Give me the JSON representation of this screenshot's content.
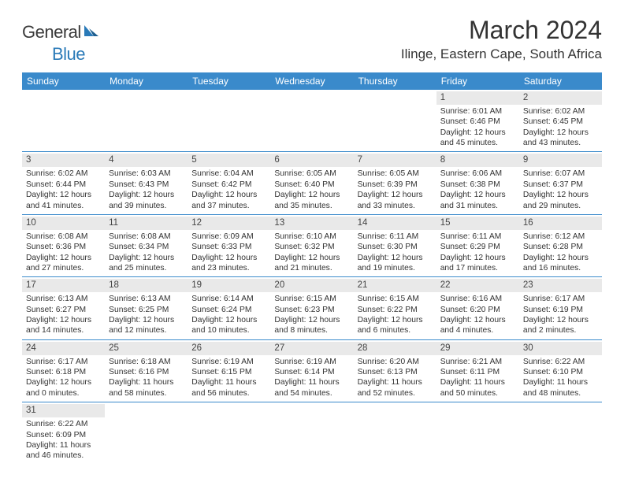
{
  "logo": {
    "general": "General",
    "blue": "Blue"
  },
  "title": "March 2024",
  "location": "Ilinge, Eastern Cape, South Africa",
  "colors": {
    "header_bg": "#3a8acb",
    "header_text": "#ffffff",
    "daynum_bg": "#e9e9e9",
    "row_border": "#3a8acb",
    "body_text": "#333333",
    "logo_blue": "#2a7ab8"
  },
  "dow": [
    "Sunday",
    "Monday",
    "Tuesday",
    "Wednesday",
    "Thursday",
    "Friday",
    "Saturday"
  ],
  "weeks": [
    [
      {
        "n": "",
        "sr": "",
        "ss": "",
        "dl": ""
      },
      {
        "n": "",
        "sr": "",
        "ss": "",
        "dl": ""
      },
      {
        "n": "",
        "sr": "",
        "ss": "",
        "dl": ""
      },
      {
        "n": "",
        "sr": "",
        "ss": "",
        "dl": ""
      },
      {
        "n": "",
        "sr": "",
        "ss": "",
        "dl": ""
      },
      {
        "n": "1",
        "sr": "Sunrise: 6:01 AM",
        "ss": "Sunset: 6:46 PM",
        "dl": "Daylight: 12 hours and 45 minutes."
      },
      {
        "n": "2",
        "sr": "Sunrise: 6:02 AM",
        "ss": "Sunset: 6:45 PM",
        "dl": "Daylight: 12 hours and 43 minutes."
      }
    ],
    [
      {
        "n": "3",
        "sr": "Sunrise: 6:02 AM",
        "ss": "Sunset: 6:44 PM",
        "dl": "Daylight: 12 hours and 41 minutes."
      },
      {
        "n": "4",
        "sr": "Sunrise: 6:03 AM",
        "ss": "Sunset: 6:43 PM",
        "dl": "Daylight: 12 hours and 39 minutes."
      },
      {
        "n": "5",
        "sr": "Sunrise: 6:04 AM",
        "ss": "Sunset: 6:42 PM",
        "dl": "Daylight: 12 hours and 37 minutes."
      },
      {
        "n": "6",
        "sr": "Sunrise: 6:05 AM",
        "ss": "Sunset: 6:40 PM",
        "dl": "Daylight: 12 hours and 35 minutes."
      },
      {
        "n": "7",
        "sr": "Sunrise: 6:05 AM",
        "ss": "Sunset: 6:39 PM",
        "dl": "Daylight: 12 hours and 33 minutes."
      },
      {
        "n": "8",
        "sr": "Sunrise: 6:06 AM",
        "ss": "Sunset: 6:38 PM",
        "dl": "Daylight: 12 hours and 31 minutes."
      },
      {
        "n": "9",
        "sr": "Sunrise: 6:07 AM",
        "ss": "Sunset: 6:37 PM",
        "dl": "Daylight: 12 hours and 29 minutes."
      }
    ],
    [
      {
        "n": "10",
        "sr": "Sunrise: 6:08 AM",
        "ss": "Sunset: 6:36 PM",
        "dl": "Daylight: 12 hours and 27 minutes."
      },
      {
        "n": "11",
        "sr": "Sunrise: 6:08 AM",
        "ss": "Sunset: 6:34 PM",
        "dl": "Daylight: 12 hours and 25 minutes."
      },
      {
        "n": "12",
        "sr": "Sunrise: 6:09 AM",
        "ss": "Sunset: 6:33 PM",
        "dl": "Daylight: 12 hours and 23 minutes."
      },
      {
        "n": "13",
        "sr": "Sunrise: 6:10 AM",
        "ss": "Sunset: 6:32 PM",
        "dl": "Daylight: 12 hours and 21 minutes."
      },
      {
        "n": "14",
        "sr": "Sunrise: 6:11 AM",
        "ss": "Sunset: 6:30 PM",
        "dl": "Daylight: 12 hours and 19 minutes."
      },
      {
        "n": "15",
        "sr": "Sunrise: 6:11 AM",
        "ss": "Sunset: 6:29 PM",
        "dl": "Daylight: 12 hours and 17 minutes."
      },
      {
        "n": "16",
        "sr": "Sunrise: 6:12 AM",
        "ss": "Sunset: 6:28 PM",
        "dl": "Daylight: 12 hours and 16 minutes."
      }
    ],
    [
      {
        "n": "17",
        "sr": "Sunrise: 6:13 AM",
        "ss": "Sunset: 6:27 PM",
        "dl": "Daylight: 12 hours and 14 minutes."
      },
      {
        "n": "18",
        "sr": "Sunrise: 6:13 AM",
        "ss": "Sunset: 6:25 PM",
        "dl": "Daylight: 12 hours and 12 minutes."
      },
      {
        "n": "19",
        "sr": "Sunrise: 6:14 AM",
        "ss": "Sunset: 6:24 PM",
        "dl": "Daylight: 12 hours and 10 minutes."
      },
      {
        "n": "20",
        "sr": "Sunrise: 6:15 AM",
        "ss": "Sunset: 6:23 PM",
        "dl": "Daylight: 12 hours and 8 minutes."
      },
      {
        "n": "21",
        "sr": "Sunrise: 6:15 AM",
        "ss": "Sunset: 6:22 PM",
        "dl": "Daylight: 12 hours and 6 minutes."
      },
      {
        "n": "22",
        "sr": "Sunrise: 6:16 AM",
        "ss": "Sunset: 6:20 PM",
        "dl": "Daylight: 12 hours and 4 minutes."
      },
      {
        "n": "23",
        "sr": "Sunrise: 6:17 AM",
        "ss": "Sunset: 6:19 PM",
        "dl": "Daylight: 12 hours and 2 minutes."
      }
    ],
    [
      {
        "n": "24",
        "sr": "Sunrise: 6:17 AM",
        "ss": "Sunset: 6:18 PM",
        "dl": "Daylight: 12 hours and 0 minutes."
      },
      {
        "n": "25",
        "sr": "Sunrise: 6:18 AM",
        "ss": "Sunset: 6:16 PM",
        "dl": "Daylight: 11 hours and 58 minutes."
      },
      {
        "n": "26",
        "sr": "Sunrise: 6:19 AM",
        "ss": "Sunset: 6:15 PM",
        "dl": "Daylight: 11 hours and 56 minutes."
      },
      {
        "n": "27",
        "sr": "Sunrise: 6:19 AM",
        "ss": "Sunset: 6:14 PM",
        "dl": "Daylight: 11 hours and 54 minutes."
      },
      {
        "n": "28",
        "sr": "Sunrise: 6:20 AM",
        "ss": "Sunset: 6:13 PM",
        "dl": "Daylight: 11 hours and 52 minutes."
      },
      {
        "n": "29",
        "sr": "Sunrise: 6:21 AM",
        "ss": "Sunset: 6:11 PM",
        "dl": "Daylight: 11 hours and 50 minutes."
      },
      {
        "n": "30",
        "sr": "Sunrise: 6:22 AM",
        "ss": "Sunset: 6:10 PM",
        "dl": "Daylight: 11 hours and 48 minutes."
      }
    ],
    [
      {
        "n": "31",
        "sr": "Sunrise: 6:22 AM",
        "ss": "Sunset: 6:09 PM",
        "dl": "Daylight: 11 hours and 46 minutes."
      },
      {
        "n": "",
        "sr": "",
        "ss": "",
        "dl": ""
      },
      {
        "n": "",
        "sr": "",
        "ss": "",
        "dl": ""
      },
      {
        "n": "",
        "sr": "",
        "ss": "",
        "dl": ""
      },
      {
        "n": "",
        "sr": "",
        "ss": "",
        "dl": ""
      },
      {
        "n": "",
        "sr": "",
        "ss": "",
        "dl": ""
      },
      {
        "n": "",
        "sr": "",
        "ss": "",
        "dl": ""
      }
    ]
  ]
}
